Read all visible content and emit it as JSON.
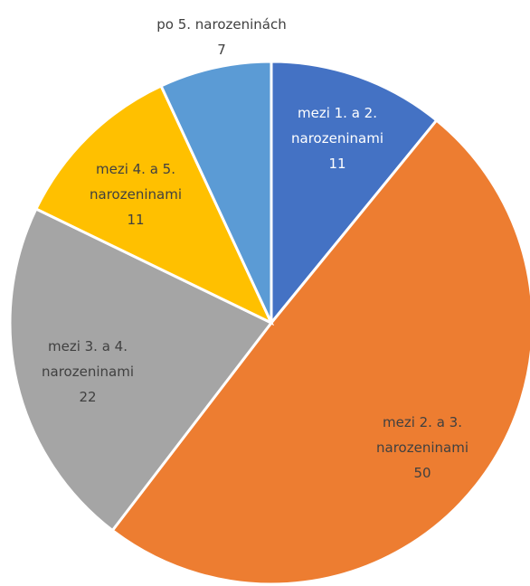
{
  "chart_data": {
    "type": "pie",
    "categories": [
      "mezi 1. a 2. narozeninami",
      "mezi 2. a 3. narozeninami",
      "mezi 3. a 4. narozeninami",
      "mezi 4. a 5. narozeninami",
      "po 5. narozeninách"
    ],
    "values": [
      11,
      50,
      22,
      11,
      7
    ],
    "colors": [
      "#4472c4",
      "#ed7d31",
      "#a5a5a5",
      "#ffc000",
      "#5b9bd5"
    ]
  }
}
